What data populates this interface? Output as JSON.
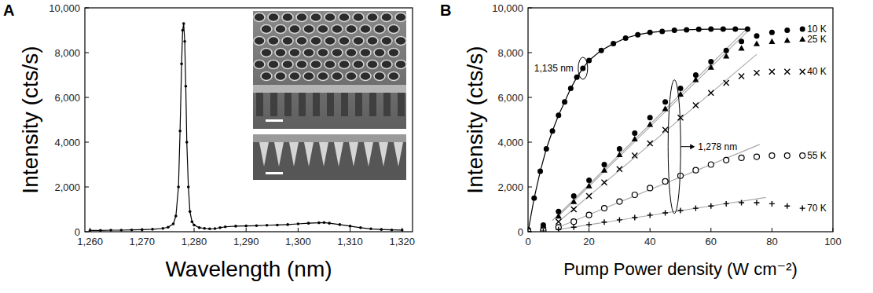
{
  "chart_data": [
    {
      "type": "line",
      "panel": "A",
      "x_label": "Wavelength (nm)",
      "y_label": "Intensity (cts/s)",
      "xlim": [
        1259,
        1322
      ],
      "ylim": [
        0,
        10000
      ],
      "xticks": [
        {
          "value": 1260,
          "label": "1,260"
        },
        {
          "value": 1270,
          "label": "1,270"
        },
        {
          "value": 1280,
          "label": "1,280"
        },
        {
          "value": 1290,
          "label": "1,290"
        },
        {
          "value": 1300,
          "label": "1,300"
        },
        {
          "value": 1310,
          "label": "1,310"
        },
        {
          "value": 1320,
          "label": "1,320"
        }
      ],
      "yticks": [
        0,
        {
          "value": 2000,
          "label": "2,000"
        },
        {
          "value": 4000,
          "label": "4,000"
        },
        {
          "value": 6000,
          "label": "6,000"
        },
        {
          "value": 8000,
          "label": "8,000"
        },
        {
          "value": 10000,
          "label": "10,000"
        }
      ],
      "grid": false,
      "x": [
        1260,
        1262,
        1264,
        1266,
        1268,
        1270,
        1272,
        1274,
        1275,
        1276,
        1276.5,
        1277,
        1277.3,
        1277.6,
        1277.8,
        1278,
        1278.2,
        1278.4,
        1278.6,
        1278.9,
        1279.2,
        1279.6,
        1280,
        1281,
        1282,
        1283,
        1284,
        1285,
        1286,
        1288,
        1290,
        1292,
        1294,
        1296,
        1298,
        1300,
        1302,
        1304,
        1305,
        1306,
        1308,
        1310,
        1312,
        1314,
        1316,
        1318,
        1320
      ],
      "series": [
        {
          "color": "#000000",
          "marker": "circle",
          "line_style": "solid",
          "values": [
            60,
            60,
            70,
            70,
            80,
            90,
            110,
            150,
            200,
            350,
            700,
            2000,
            4500,
            7500,
            9000,
            9300,
            8500,
            6500,
            4000,
            2000,
            900,
            450,
            300,
            180,
            150,
            130,
            140,
            180,
            220,
            250,
            260,
            270,
            290,
            300,
            320,
            350,
            380,
            400,
            410,
            380,
            320,
            250,
            180,
            130,
            100,
            80,
            70
          ]
        }
      ]
    },
    {
      "type": "line",
      "panel": "B",
      "x_label": "Pump Power density (W cm⁻²)",
      "y_label": "Intensity (cts/s)",
      "xlim": [
        0,
        100
      ],
      "ylim": [
        0,
        10000
      ],
      "xticks": [
        0,
        20,
        40,
        60,
        80,
        100
      ],
      "yticks": [
        0,
        {
          "value": 2000,
          "label": "2,000"
        },
        {
          "value": 4000,
          "label": "4,000"
        },
        {
          "value": 6000,
          "label": "6,000"
        },
        {
          "value": 8000,
          "label": "8,000"
        },
        {
          "value": 10000,
          "label": "10,000"
        }
      ],
      "grid": false,
      "series": [
        {
          "color": "#000000",
          "marker": "circle",
          "line_style": "solid",
          "x": [
            0,
            2,
            4,
            6,
            8,
            10,
            12,
            14,
            16,
            18,
            20,
            24,
            28,
            32,
            36,
            40,
            44,
            48,
            52,
            56,
            60,
            64,
            68,
            72
          ],
          "values": [
            0,
            1500,
            2700,
            3700,
            4500,
            5200,
            5800,
            6400,
            6900,
            7300,
            7650,
            8100,
            8400,
            8650,
            8800,
            8900,
            8950,
            9000,
            9020,
            9040,
            9050,
            9050,
            9050,
            9050
          ]
        },
        {
          "name": "10 K",
          "color": "#000000",
          "marker": "circle",
          "line_style": "none",
          "x": [
            0,
            5,
            10,
            15,
            20,
            25,
            30,
            35,
            40,
            45,
            50,
            55,
            60,
            65,
            70,
            75,
            80,
            85,
            90
          ],
          "values": [
            100,
            300,
            900,
            1600,
            2300,
            3000,
            3700,
            4400,
            5100,
            5800,
            6400,
            7000,
            7600,
            8100,
            8500,
            8750,
            8900,
            9000,
            9050
          ]
        },
        {
          "name": "25 K",
          "color": "#000000",
          "marker": "triangle",
          "line_style": "none",
          "x": [
            0,
            5,
            10,
            15,
            20,
            25,
            30,
            35,
            40,
            45,
            50,
            55,
            60,
            65,
            70,
            75,
            80,
            85,
            90
          ],
          "values": [
            50,
            200,
            700,
            1350,
            2050,
            2750,
            3450,
            4150,
            4800,
            5500,
            6150,
            6800,
            7350,
            7850,
            8200,
            8400,
            8500,
            8550,
            8600
          ]
        },
        {
          "name": "40 K",
          "color": "#000000",
          "marker": "x",
          "line_style": "none",
          "x": [
            0,
            5,
            10,
            15,
            20,
            25,
            30,
            35,
            40,
            45,
            50,
            55,
            60,
            65,
            70,
            75,
            80,
            85,
            90
          ],
          "values": [
            30,
            100,
            450,
            1000,
            1600,
            2200,
            2800,
            3400,
            3950,
            4550,
            5100,
            5650,
            6200,
            6650,
            6950,
            7100,
            7150,
            7150,
            7150
          ]
        },
        {
          "name": "55 K",
          "color": "#000000",
          "marker": "open-circle",
          "line_style": "none",
          "x": [
            0,
            5,
            10,
            15,
            20,
            25,
            30,
            35,
            40,
            45,
            50,
            55,
            60,
            65,
            70,
            75,
            80,
            85,
            90
          ],
          "values": [
            20,
            60,
            200,
            450,
            750,
            1050,
            1350,
            1650,
            1950,
            2250,
            2500,
            2750,
            3000,
            3200,
            3300,
            3350,
            3400,
            3400,
            3400
          ]
        },
        {
          "name": "70 K",
          "color": "#000000",
          "marker": "plus",
          "line_style": "none",
          "x": [
            0,
            5,
            10,
            15,
            20,
            25,
            30,
            35,
            40,
            45,
            50,
            55,
            60,
            65,
            70,
            75,
            80,
            85,
            90
          ],
          "values": [
            10,
            30,
            100,
            200,
            320,
            430,
            530,
            630,
            740,
            840,
            950,
            1050,
            1150,
            1250,
            1300,
            1300,
            1250,
            1150,
            1050
          ]
        }
      ],
      "fits": [
        {
          "color": "#aaaaaa",
          "x": [
            8,
            72
          ],
          "values": [
            500,
            9100
          ]
        },
        {
          "color": "#aaaaaa",
          "x": [
            10,
            72
          ],
          "values": [
            700,
            8950
          ]
        },
        {
          "color": "#aaaaaa",
          "x": [
            10,
            75
          ],
          "values": [
            450,
            7925
          ]
        },
        {
          "color": "#aaaaaa",
          "x": [
            10,
            76
          ],
          "values": [
            200,
            3900
          ]
        },
        {
          "color": "#aaaaaa",
          "x": [
            10,
            78
          ],
          "values": [
            100,
            1530
          ]
        }
      ],
      "annotations": [
        {
          "text": "1,135 nm",
          "x": 18,
          "y": 7300
        },
        {
          "text": "1,278 nm",
          "x": 48,
          "y": 3800
        }
      ]
    }
  ]
}
